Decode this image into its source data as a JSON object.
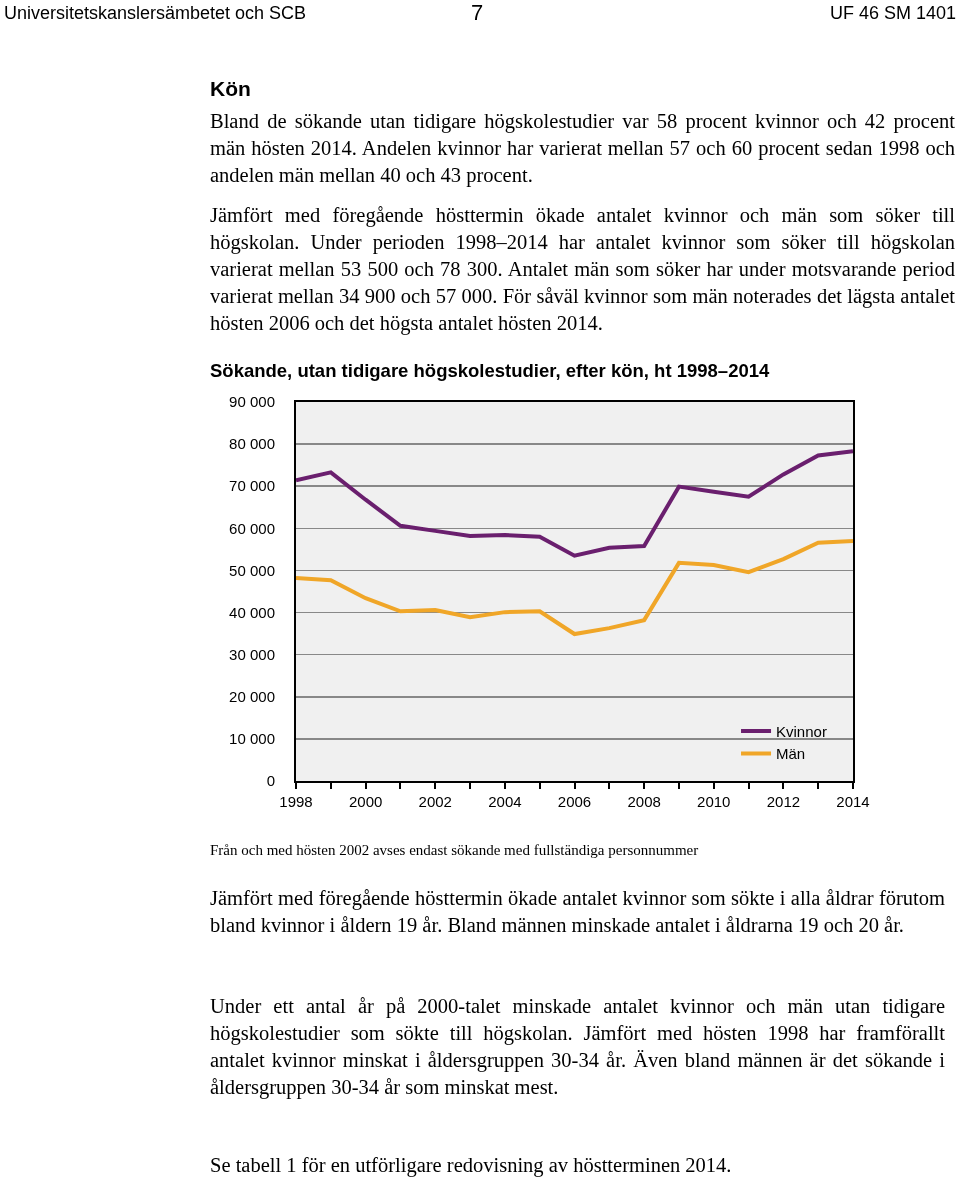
{
  "chart_data": {
    "type": "line",
    "title": "Sökande, utan tidigare högskolestudier, efter kön, ht 1998–2014",
    "x": [
      1998,
      1999,
      2000,
      2001,
      2002,
      2003,
      2004,
      2005,
      2006,
      2007,
      2008,
      2009,
      2010,
      2011,
      2012,
      2013,
      2014
    ],
    "series": [
      {
        "name": "Kvinnor",
        "color": "#6a1f6e",
        "values": [
          71400,
          73300,
          66800,
          60600,
          59400,
          58200,
          58400,
          58000,
          53500,
          55400,
          55800,
          69900,
          68700,
          67500,
          72800,
          77300,
          78300
        ]
      },
      {
        "name": "Män",
        "color": "#f0a628",
        "values": [
          48200,
          47700,
          43400,
          40300,
          40600,
          38900,
          40100,
          40300,
          34900,
          36300,
          38200,
          51800,
          51300,
          49600,
          52700,
          56600,
          57000
        ]
      }
    ],
    "xlim": [
      1998,
      2014
    ],
    "xticks": [
      1998,
      {
        "value": 1999,
        "label": null
      },
      2000,
      {
        "value": 2001,
        "label": null
      },
      2002,
      {
        "value": 2003,
        "label": null
      },
      2004,
      {
        "value": 2005,
        "label": null
      },
      2006,
      {
        "value": 2007,
        "label": null
      },
      2008,
      {
        "value": 2009,
        "label": null
      },
      2010,
      {
        "value": 2011,
        "label": null
      },
      2012,
      {
        "value": 2013,
        "label": null
      },
      2014
    ],
    "ylim": [
      0,
      90000
    ],
    "yticks": [
      0,
      {
        "value": 10000,
        "label": "10 000"
      },
      {
        "value": 20000,
        "label": "20 000"
      },
      {
        "value": 30000,
        "label": "30 000"
      },
      {
        "value": 40000,
        "label": "40 000"
      },
      {
        "value": 50000,
        "label": "50 000"
      },
      {
        "value": 60000,
        "label": "60 000"
      },
      {
        "value": 70000,
        "label": "70 000"
      },
      {
        "value": 80000,
        "label": "80 000"
      },
      {
        "value": 90000,
        "label": "90 000"
      }
    ],
    "grid": "y",
    "legend": "bottom right",
    "marker": "none",
    "line_style": "solid",
    "annotations": [
      "Universitetskanslersämbetet och SCB",
      "7",
      "UF 46 SM 1401",
      "Kön",
      "Bland de sökande utan tidigare högskolestudier var 58 procent kvinnor och 42 procent män hösten 2014. Andelen kvinnor har varierat mellan 57 och 60 procent sedan 1998 och andelen män mellan 40 och 43 procent.",
      "Jämfört med föregående hösttermin ökade antalet kvinnor och män som söker till högskolan. Under perioden 1998–2014 har antalet kvinnor som söker till högskolan varierat mellan 53 500 och 78 300. Antalet män som söker har under motsvarande period varierat mellan 34 900 och 57 000. För såväl kvinnor som män noterades det lägsta antalet hösten 2006 och det högsta antalet hösten 2014.",
      "Från och med hösten 2002 avses endast sökande med fullständiga personnummer",
      "Jämfört med föregående hösttermin ökade antalet kvinnor som sökte i alla åldrar förutom bland kvinnor i åldern 19 år. Bland männen minskade antalet i åldrarna 19 och 20 år.",
      "Under ett antal år på 2000-talet minskade antalet kvinnor och män utan tidigare högskolestudier som sökte till högskolan. Jämfört med hösten 1998 har framförallt antalet kvinnor minskat i åldersgruppen 30-34 år. Även bland männen är det sökande i åldersgruppen 30-34 år som minskat mest.",
      "Se tabell 1 för en utförligare redovisning av höstterminen 2014."
    ]
  }
}
